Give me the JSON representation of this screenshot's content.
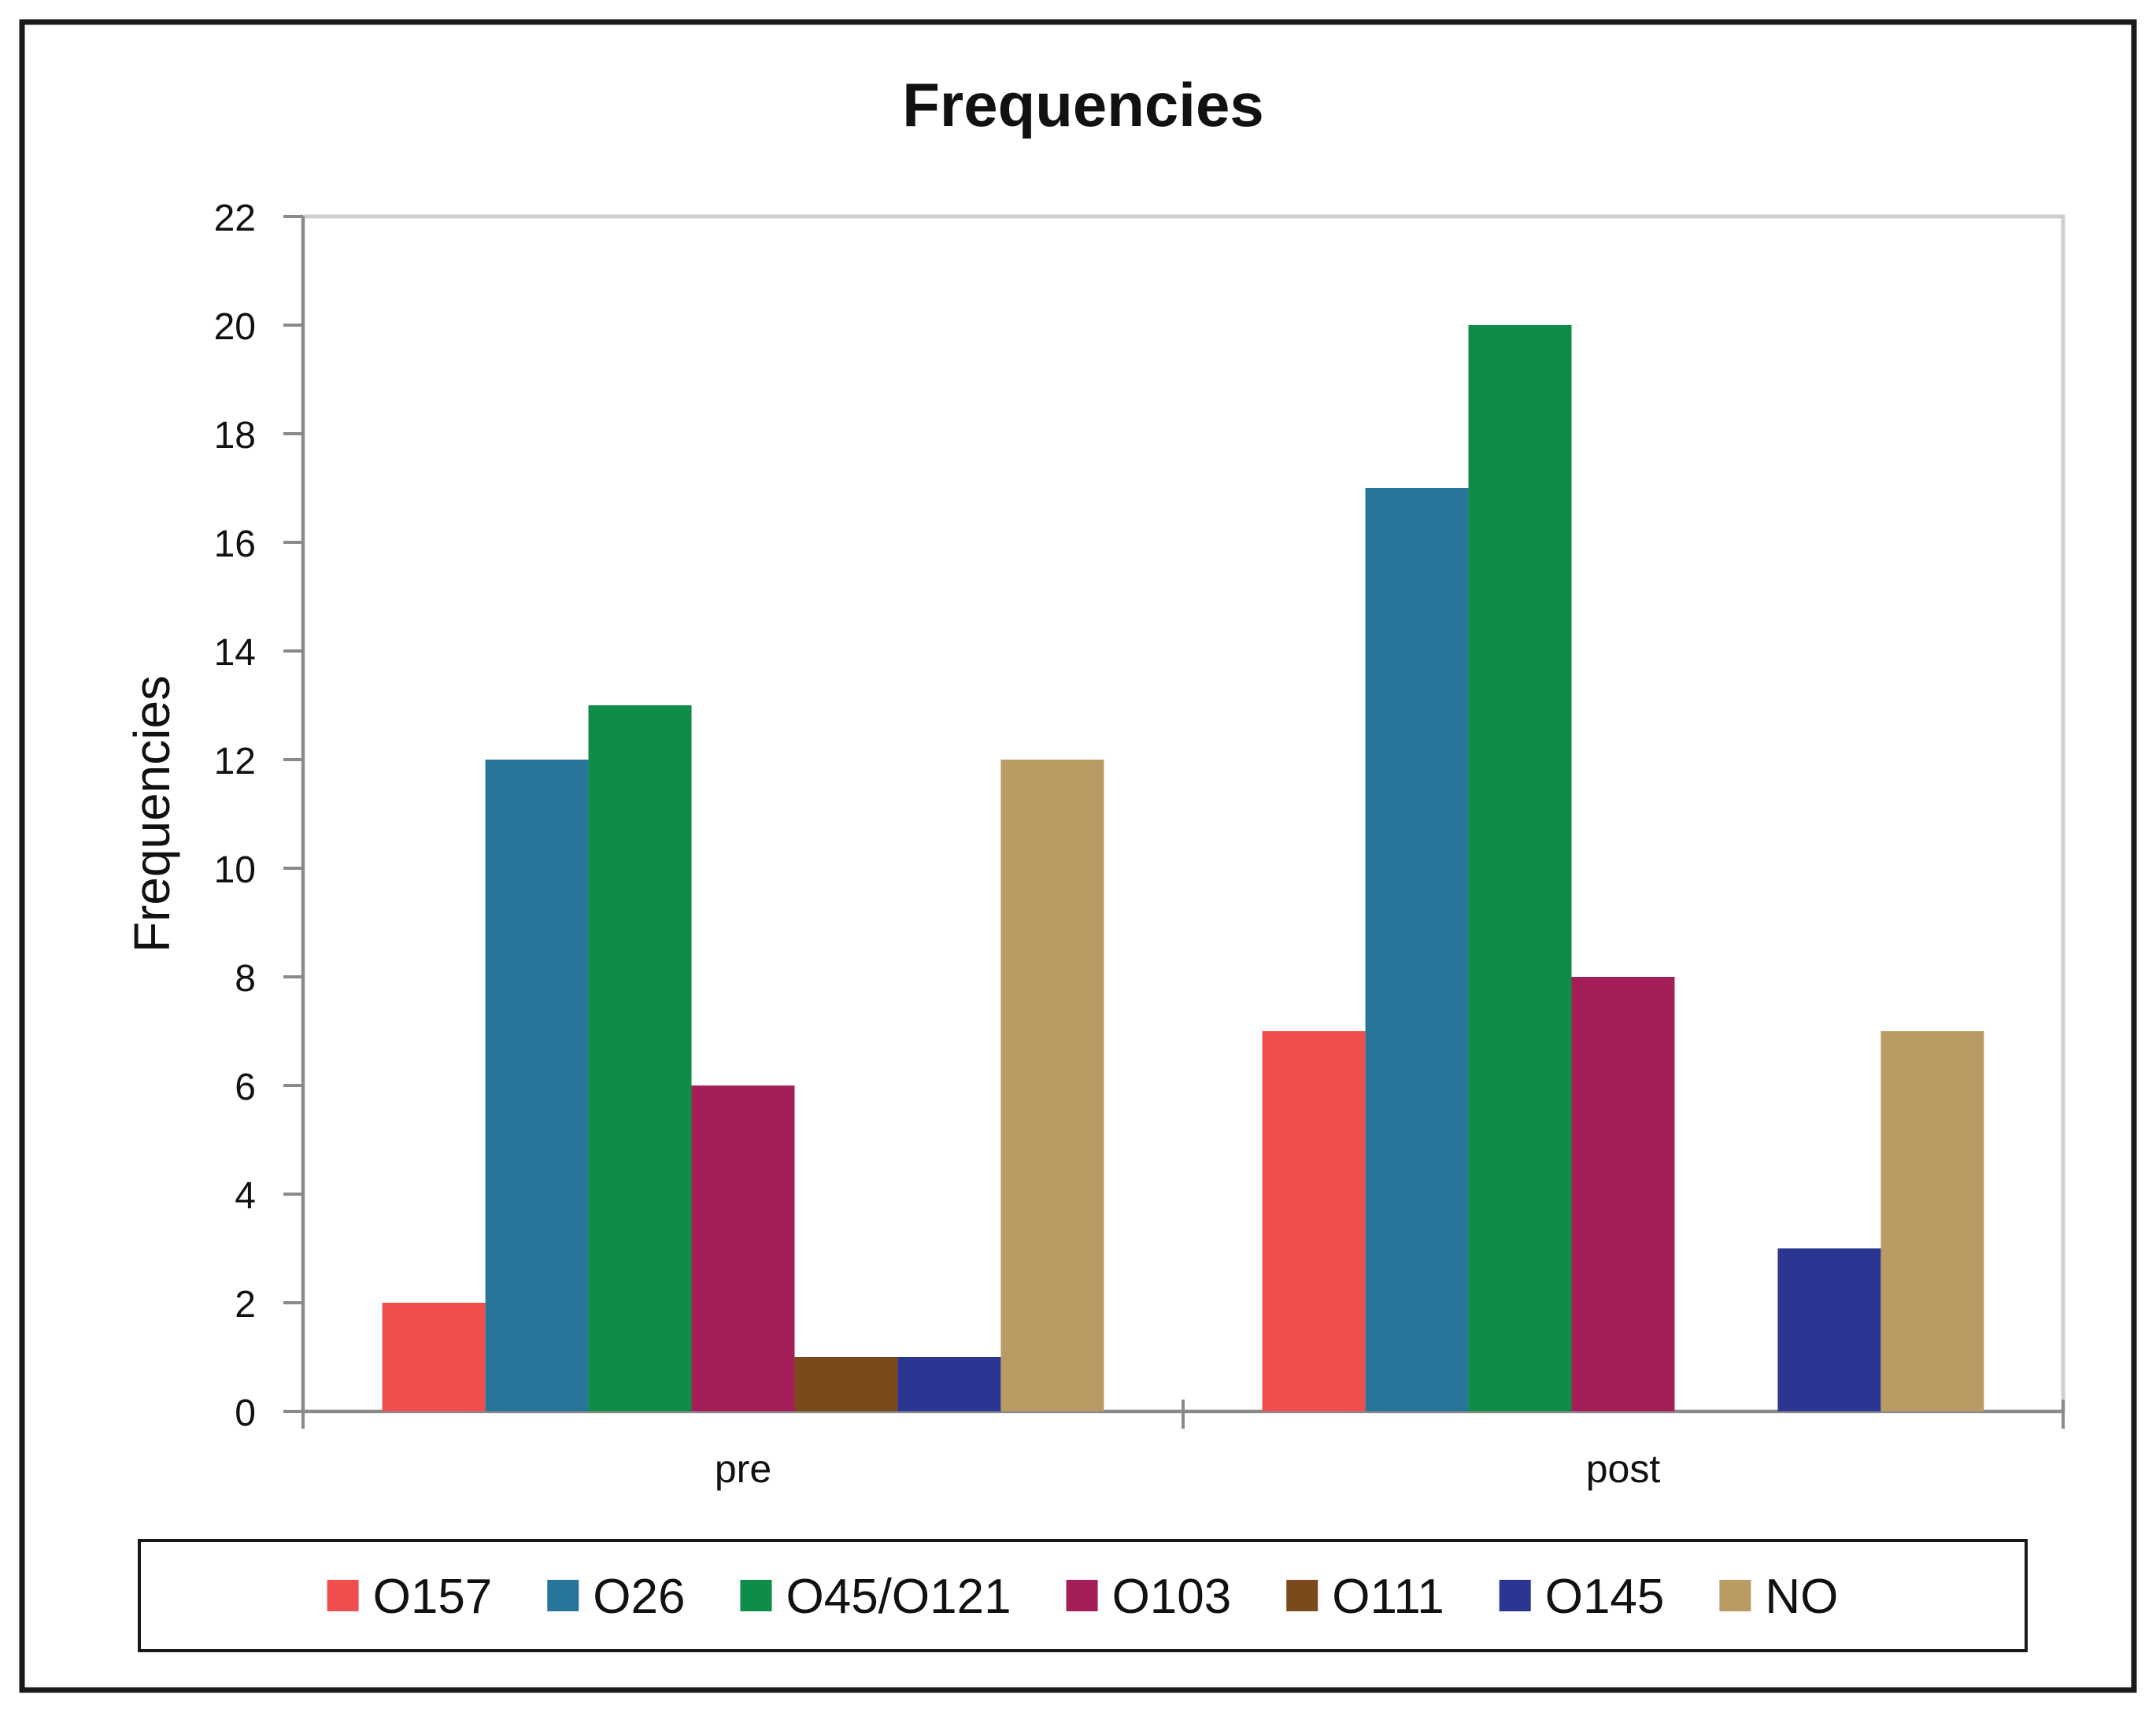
{
  "chart_data": {
    "type": "bar",
    "title": "Frequencies",
    "ylabel": "Frequencies",
    "xlabel": "",
    "ylim": [
      0,
      22
    ],
    "yticks": [
      0,
      2,
      4,
      6,
      8,
      10,
      12,
      14,
      16,
      18,
      20,
      22
    ],
    "grid": false,
    "legend_position": "bottom",
    "categories": [
      "pre",
      "post"
    ],
    "series": [
      {
        "name": "O157",
        "color": "#f0504d",
        "values": [
          2,
          7
        ]
      },
      {
        "name": "O26",
        "color": "#277598",
        "values": [
          12,
          17
        ]
      },
      {
        "name": "O45/O121",
        "color": "#0e8c48",
        "values": [
          13,
          20
        ]
      },
      {
        "name": "O103",
        "color": "#a41e59",
        "values": [
          6,
          8
        ]
      },
      {
        "name": "O111",
        "color": "#7a4a1d",
        "values": [
          1,
          0
        ]
      },
      {
        "name": "O145",
        "color": "#2b3592",
        "values": [
          1,
          3
        ]
      },
      {
        "name": "NO",
        "color": "#b99b64",
        "values": [
          12,
          7
        ]
      }
    ]
  }
}
